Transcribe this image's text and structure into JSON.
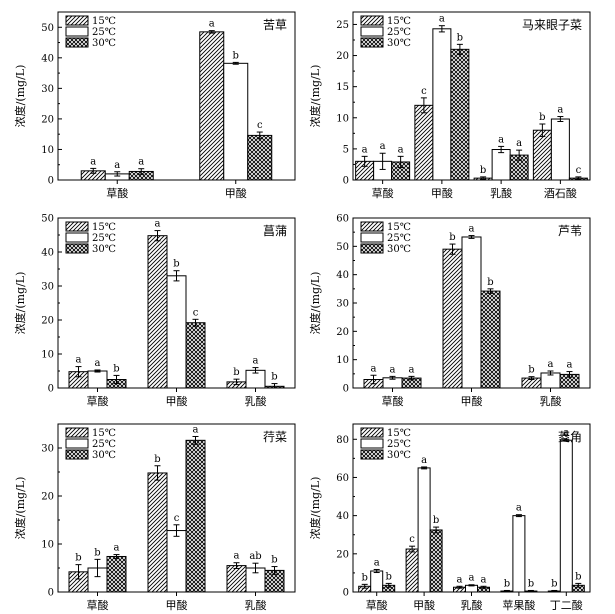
{
  "chart_data": [
    {
      "type": "bar",
      "title": "苦草",
      "ylabel": "浓度/(mg/L)",
      "ylim": [
        0,
        55
      ],
      "yticks": [
        0,
        10,
        20,
        30,
        40,
        50
      ],
      "legend_position": "top-left",
      "categories": [
        "草酸",
        "甲酸"
      ],
      "series": [
        {
          "name": "15℃",
          "values": [
            3.0,
            48.5
          ],
          "errors": [
            0.8,
            0.4
          ],
          "labels": [
            "a",
            "a"
          ]
        },
        {
          "name": "25℃",
          "values": [
            2.0,
            38.2
          ],
          "errors": [
            0.7,
            0.3
          ],
          "labels": [
            "a",
            "b"
          ]
        },
        {
          "name": "30℃",
          "values": [
            2.8,
            14.6
          ],
          "errors": [
            0.9,
            1.1
          ],
          "labels": [
            "a",
            "c"
          ]
        }
      ]
    },
    {
      "type": "bar",
      "title": "马来眼子菜",
      "ylabel": "浓度/(mg/L)",
      "ylim": [
        0,
        27
      ],
      "yticks": [
        0,
        5,
        10,
        15,
        20,
        25
      ],
      "legend_position": "top-left",
      "categories": [
        "草酸",
        "甲酸",
        "乳酸",
        "酒石酸"
      ],
      "series": [
        {
          "name": "15℃",
          "values": [
            3.0,
            12.0,
            0.3,
            8.0
          ],
          "errors": [
            0.8,
            1.2,
            0.2,
            1.0
          ],
          "labels": [
            "a",
            "c",
            "b",
            "b"
          ]
        },
        {
          "name": "25℃",
          "values": [
            3.0,
            24.3,
            4.9,
            9.8
          ],
          "errors": [
            1.3,
            0.5,
            0.5,
            0.4
          ],
          "labels": [
            "a",
            "a",
            "a",
            "a"
          ]
        },
        {
          "name": "30℃",
          "values": [
            2.9,
            21.0,
            4.0,
            0.3
          ],
          "errors": [
            0.9,
            0.8,
            0.8,
            0.2
          ],
          "labels": [
            "a",
            "b",
            "a",
            "c"
          ]
        }
      ]
    },
    {
      "type": "bar",
      "title": "菖蒲",
      "ylabel": "浓度/(mg/L)",
      "ylim": [
        0,
        50
      ],
      "yticks": [
        0,
        10,
        20,
        30,
        40,
        50
      ],
      "legend_position": "top-left",
      "categories": [
        "草酸",
        "甲酸",
        "乳酸"
      ],
      "series": [
        {
          "name": "15℃",
          "values": [
            4.8,
            44.8,
            1.8
          ],
          "errors": [
            1.5,
            1.5,
            0.8
          ],
          "labels": [
            "a",
            "a",
            "b"
          ]
        },
        {
          "name": "25℃",
          "values": [
            5.0,
            33.0,
            5.2
          ],
          "errors": [
            0.3,
            1.5,
            0.8
          ],
          "labels": [
            "a",
            "b",
            "a"
          ]
        },
        {
          "name": "30℃",
          "values": [
            2.5,
            19.2,
            0.5
          ],
          "errors": [
            1.2,
            1.0,
            0.8
          ],
          "labels": [
            "b",
            "c",
            "b"
          ]
        }
      ]
    },
    {
      "type": "bar",
      "title": "芦苇",
      "ylabel": "浓度/(mg/L)",
      "ylim": [
        0,
        60
      ],
      "yticks": [
        0,
        10,
        20,
        30,
        40,
        50,
        60
      ],
      "legend_position": "top-left",
      "categories": [
        "草酸",
        "甲酸",
        "乳酸"
      ],
      "series": [
        {
          "name": "15℃",
          "values": [
            3.0,
            49.0,
            3.5
          ],
          "errors": [
            1.5,
            1.8,
            0.5
          ],
          "labels": [
            "a",
            "b",
            "b"
          ]
        },
        {
          "name": "25℃",
          "values": [
            3.6,
            53.3,
            5.3
          ],
          "errors": [
            0.5,
            0.5,
            0.7
          ],
          "labels": [
            "a",
            "a",
            "a"
          ]
        },
        {
          "name": "30℃",
          "values": [
            3.5,
            34.2,
            4.8
          ],
          "errors": [
            0.6,
            0.8,
            1.0
          ],
          "labels": [
            "a",
            "b",
            "a"
          ]
        }
      ]
    },
    {
      "type": "bar",
      "title": "荇菜",
      "ylabel": "浓度/(mg/L)",
      "ylim": [
        0,
        35
      ],
      "yticks": [
        0,
        10,
        20,
        30
      ],
      "legend_position": "top-left",
      "categories": [
        "草酸",
        "甲酸",
        "乳酸"
      ],
      "series": [
        {
          "name": "15℃",
          "values": [
            4.2,
            24.8,
            5.5
          ],
          "errors": [
            1.5,
            1.5,
            0.6
          ],
          "labels": [
            "b",
            "b",
            "a"
          ]
        },
        {
          "name": "25℃",
          "values": [
            5.0,
            12.8,
            5.0
          ],
          "errors": [
            1.8,
            1.2,
            1.0
          ],
          "labels": [
            "b",
            "c",
            "ab"
          ]
        },
        {
          "name": "30℃",
          "values": [
            7.4,
            31.6,
            4.5
          ],
          "errors": [
            0.4,
            0.8,
            0.8
          ],
          "labels": [
            "a",
            "a",
            "b"
          ]
        }
      ]
    },
    {
      "type": "bar",
      "title": "菱角",
      "ylabel": "浓度/(mg/L)",
      "ylim": [
        0,
        88
      ],
      "yticks": [
        0,
        20,
        40,
        60,
        80
      ],
      "legend_position": "top-left",
      "categories": [
        "草酸",
        "甲酸",
        "乳酸",
        "苹果酸",
        "丁二酸"
      ],
      "series": [
        {
          "name": "15℃",
          "values": [
            3.0,
            22.5,
            2.5,
            0.5,
            0.5
          ],
          "errors": [
            1.0,
            1.5,
            0.5,
            0.3,
            0.3
          ],
          "labels": [
            "b",
            "c",
            "a",
            "b",
            "b"
          ]
        },
        {
          "name": "25℃",
          "values": [
            11.0,
            65.0,
            3.5,
            40.0,
            79.5
          ],
          "errors": [
            0.8,
            0.5,
            0.3,
            0.5,
            0.5
          ],
          "labels": [
            "a",
            "a",
            "a",
            "a",
            "a"
          ]
        },
        {
          "name": "30℃",
          "values": [
            3.5,
            32.5,
            2.5,
            0.5,
            3.5
          ],
          "errors": [
            1.0,
            1.5,
            0.5,
            0.3,
            1.0
          ],
          "labels": [
            "b",
            "b",
            "a",
            "b",
            "b"
          ]
        }
      ]
    }
  ]
}
